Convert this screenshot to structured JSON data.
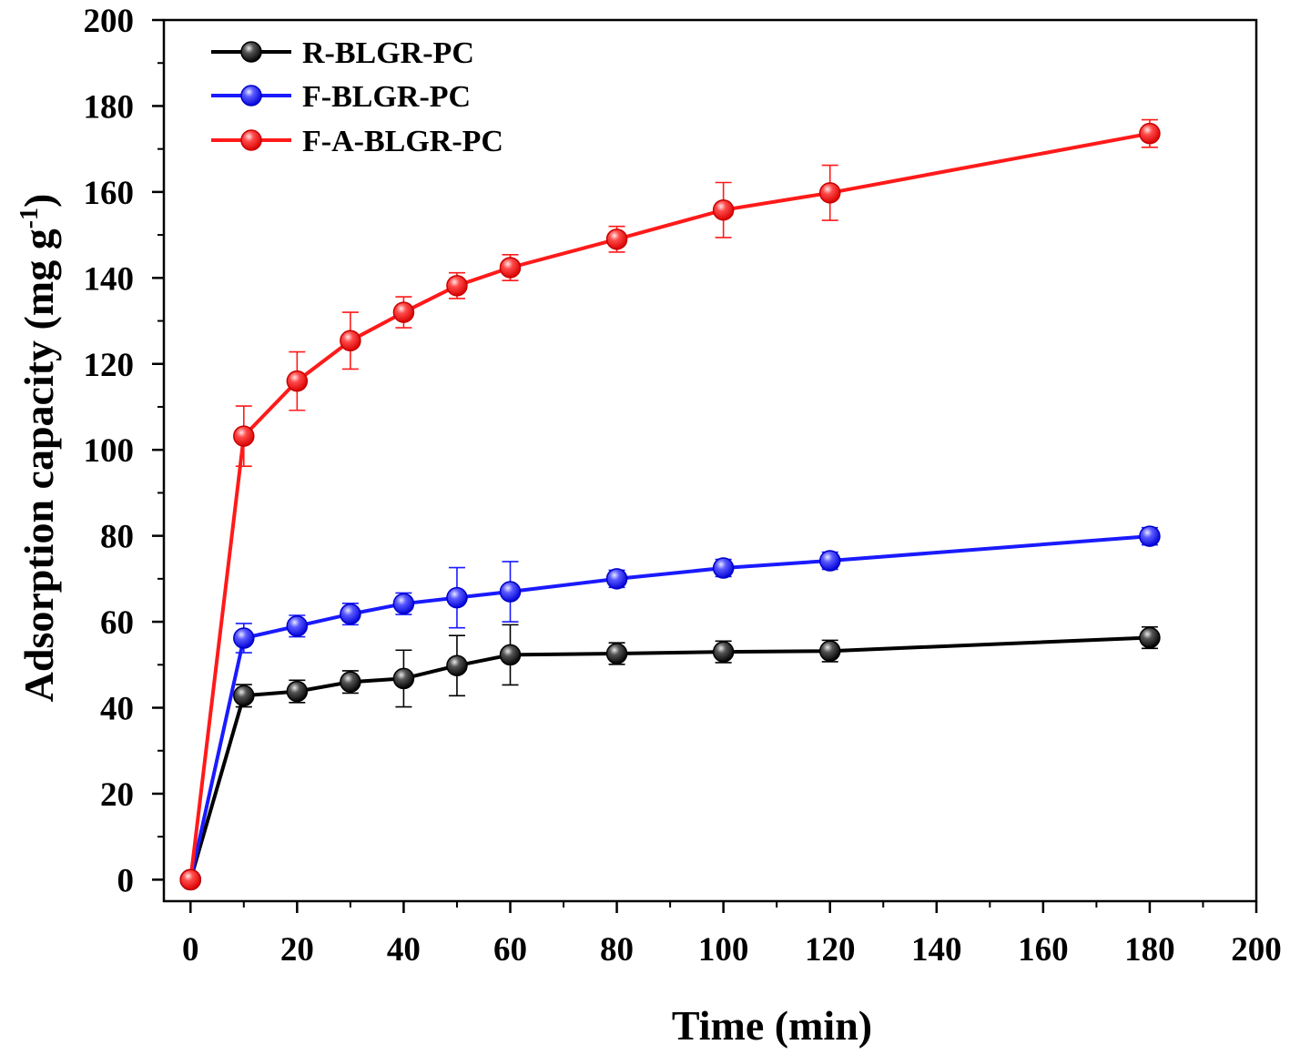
{
  "chart_data": {
    "type": "line",
    "xlabel": "Time (min)",
    "ylabel_main": "Adsorption capacity (mg g",
    "ylabel_sup": "-1",
    "ylabel_close": ")",
    "xlim": [
      -5,
      200
    ],
    "ylim": [
      -5,
      200
    ],
    "x_ticks": [
      0,
      20,
      40,
      60,
      80,
      100,
      120,
      140,
      160,
      180,
      200
    ],
    "y_ticks": [
      0,
      20,
      40,
      60,
      80,
      100,
      120,
      140,
      160,
      180,
      200
    ],
    "legend_position": "top-left",
    "x": [
      0,
      10,
      20,
      30,
      40,
      50,
      60,
      80,
      100,
      120,
      180
    ],
    "series": [
      {
        "name": "R-BLGR-PC",
        "color": "#000000",
        "values": [
          0,
          42.8,
          43.8,
          46.0,
          46.8,
          49.8,
          52.3,
          52.6,
          53.0,
          53.2,
          56.3
        ],
        "errors": [
          0,
          2.6,
          2.6,
          2.6,
          6.6,
          7.0,
          7.0,
          2.5,
          2.5,
          2.5,
          2.5
        ]
      },
      {
        "name": "F-BLGR-PC",
        "color": "#1a1aff",
        "values": [
          0,
          56.2,
          59.0,
          61.8,
          64.2,
          65.6,
          67.0,
          70.0,
          72.5,
          74.2,
          79.9
        ],
        "errors": [
          0,
          3.4,
          2.5,
          2.5,
          2.5,
          7.0,
          7.0,
          2.0,
          2.0,
          2.0,
          2.0
        ]
      },
      {
        "name": "F-A-BLGR-PC",
        "color": "#ff1a1a",
        "values": [
          0,
          103.2,
          116.0,
          125.4,
          132.0,
          138.2,
          142.4,
          149.0,
          155.8,
          159.8,
          173.6
        ],
        "errors": [
          0,
          7.0,
          6.8,
          6.6,
          3.6,
          3.0,
          3.0,
          3.0,
          6.4,
          6.4,
          3.2
        ]
      }
    ]
  }
}
